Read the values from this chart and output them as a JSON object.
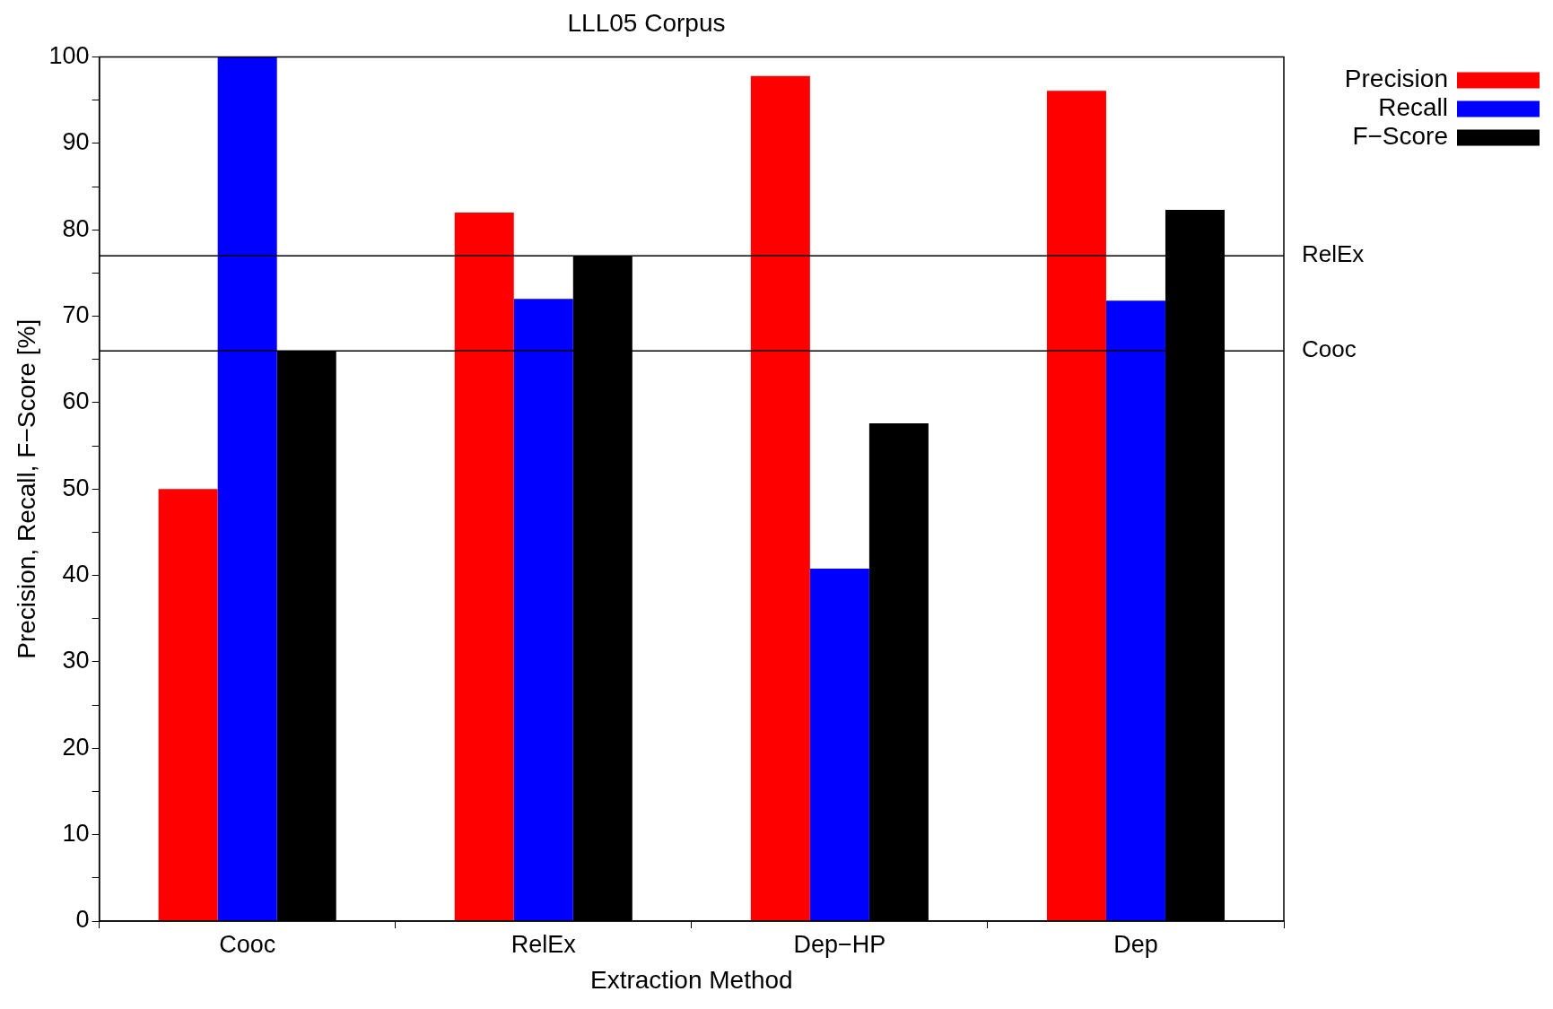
{
  "chart_data": {
    "type": "bar",
    "title": "LLL05 Corpus",
    "xlabel": "Extraction Method",
    "ylabel": "Precision, Recall, F−Score [%]",
    "categories": [
      "Cooc",
      "RelEx",
      "Dep−HP",
      "Dep"
    ],
    "series": [
      {
        "name": "Precision",
        "color": "#ff0000",
        "values": [
          50,
          82,
          97.8,
          96.1
        ]
      },
      {
        "name": "Recall",
        "color": "#0000ff",
        "values": [
          100,
          72,
          40.8,
          71.8
        ]
      },
      {
        "name": "F−Score",
        "color": "#000000",
        "values": [
          66,
          77,
          57.6,
          82.3
        ]
      }
    ],
    "ylim": [
      0,
      100
    ],
    "yticks": [
      0,
      {
        "value": 5,
        "label": null
      },
      10,
      {
        "value": 15,
        "label": null
      },
      20,
      {
        "value": 25,
        "label": null
      },
      30,
      {
        "value": 35,
        "label": null
      },
      40,
      {
        "value": 45,
        "label": null
      },
      50,
      {
        "value": 55,
        "label": null
      },
      60,
      {
        "value": 65,
        "label": null
      },
      70,
      {
        "value": 75,
        "label": null
      },
      80,
      {
        "value": 85,
        "label": null
      },
      90,
      {
        "value": 95,
        "label": null
      },
      100
    ],
    "ref_lines": [
      {
        "axis": "y",
        "value": 77,
        "label": "RelEx",
        "color": "#000000"
      },
      {
        "axis": "y",
        "value": 66,
        "label": "Cooc",
        "color": "#000000"
      }
    ],
    "grid": false,
    "legend": "top right"
  }
}
